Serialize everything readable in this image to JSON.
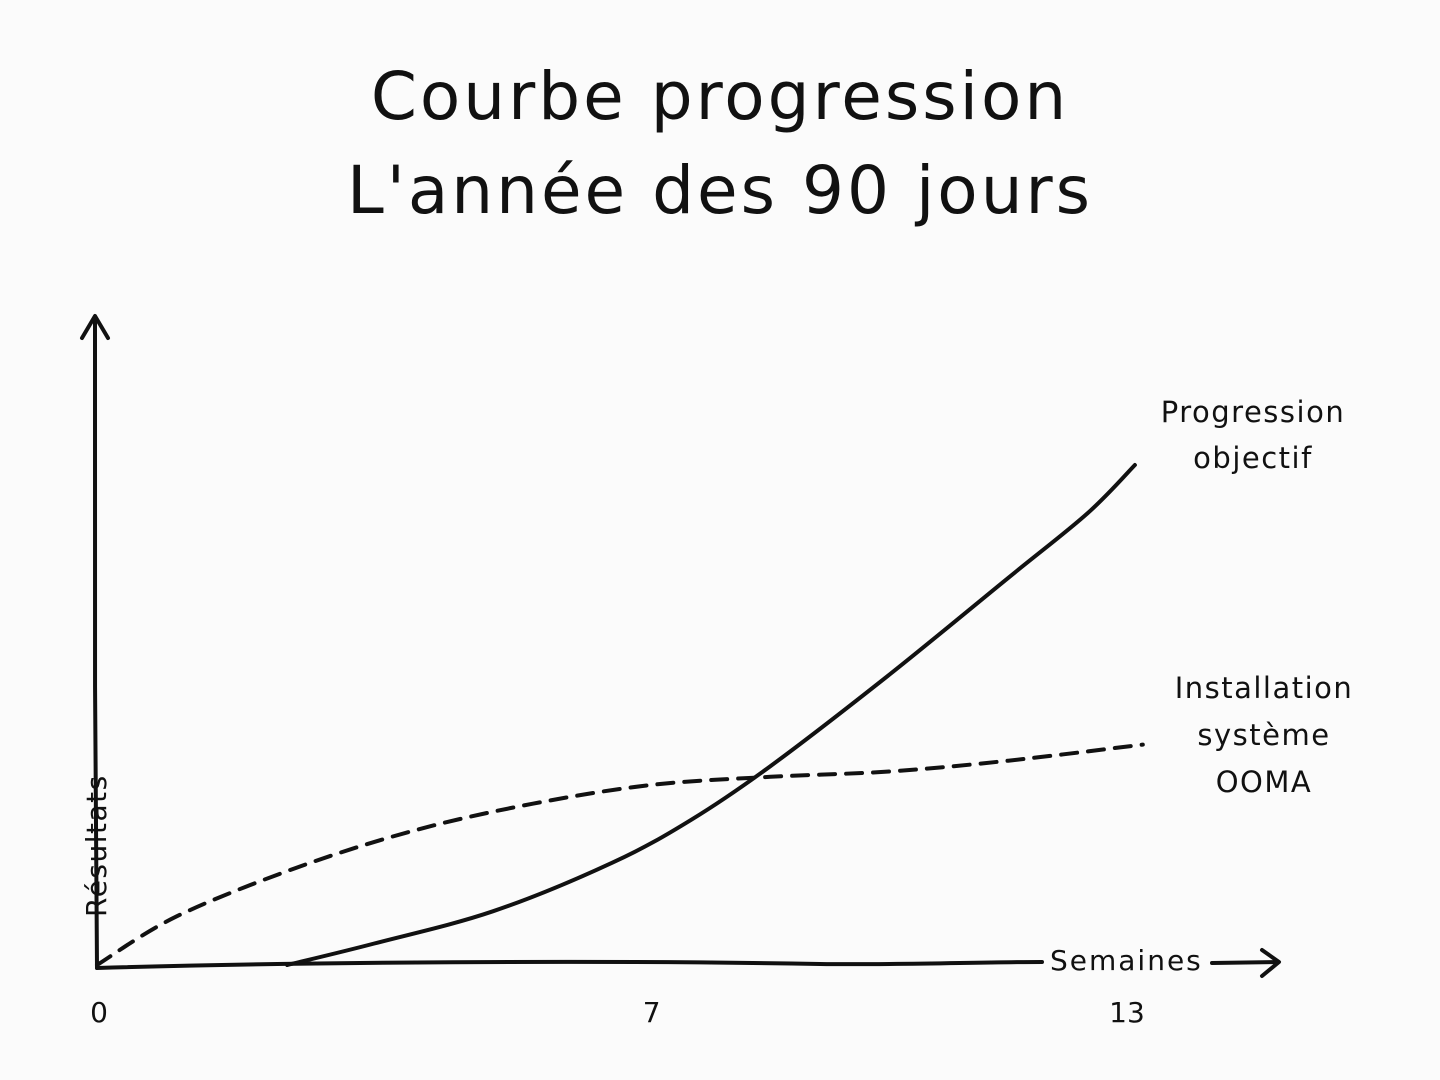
{
  "title": {
    "line1": "Courbe progression",
    "line2": "L'année des 90 jours"
  },
  "colors": {
    "ink": "#111111",
    "background": "#fbfbfb"
  },
  "chart_data": {
    "type": "line",
    "xlabel": "Semaines",
    "ylabel": "Résultats",
    "xlim": [
      0,
      14
    ],
    "ylim": [
      0,
      10
    ],
    "xticks": [
      0,
      7,
      13
    ],
    "grid": false,
    "series": [
      {
        "name": "Progression objectif",
        "style": "solid",
        "points": [
          [
            2.4,
            0
          ],
          [
            3.5,
            0.4
          ],
          [
            5.0,
            1.0
          ],
          [
            6.5,
            1.9
          ],
          [
            7.5,
            2.7
          ],
          [
            8.5,
            3.7
          ],
          [
            10.0,
            5.4
          ],
          [
            11.5,
            7.2
          ],
          [
            12.5,
            8.4
          ],
          [
            13.1,
            9.3
          ]
        ]
      },
      {
        "name": "Installation système OOMA",
        "style": "dashed",
        "points": [
          [
            0,
            0
          ],
          [
            1.0,
            0.9
          ],
          [
            2.5,
            1.8
          ],
          [
            4.0,
            2.5
          ],
          [
            5.5,
            3.0
          ],
          [
            7.0,
            3.35
          ],
          [
            8.5,
            3.5
          ],
          [
            10.0,
            3.6
          ],
          [
            11.5,
            3.8
          ],
          [
            13.2,
            4.1
          ]
        ]
      }
    ],
    "annotations": [
      {
        "series": "Progression objectif",
        "lines": [
          "Progression",
          "objectif"
        ]
      },
      {
        "series": "Installation système OOMA",
        "lines": [
          "Installation",
          "système",
          "OOMA"
        ]
      }
    ]
  }
}
